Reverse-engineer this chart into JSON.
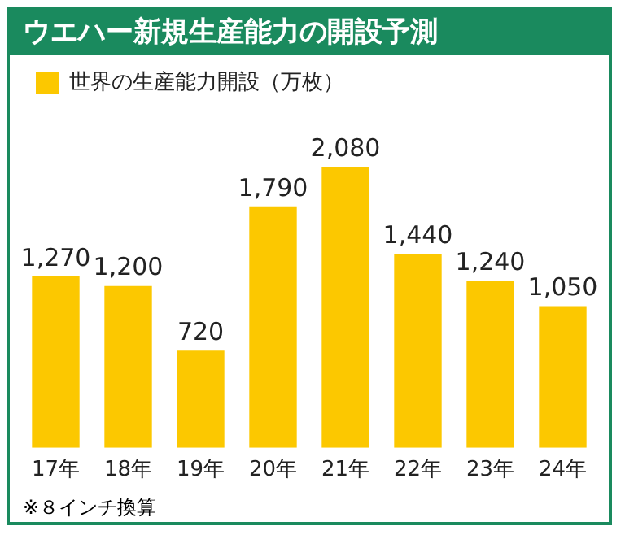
{
  "chart_data": {
    "type": "bar",
    "title": "ウエハー新規生産能力の開設予測",
    "categories": [
      "17年",
      "18年",
      "19年",
      "20年",
      "21年",
      "22年",
      "23年",
      "24年"
    ],
    "series": [
      {
        "name": "世界の生産能力開設（万枚）",
        "color": "#fcc800",
        "values": [
          1270,
          1200,
          720,
          1790,
          2080,
          1440,
          1240,
          1050
        ],
        "value_labels": [
          "1,270",
          "1,200",
          "720",
          "1,790",
          "2,080",
          "1,440",
          "1,240",
          "1,050"
        ]
      }
    ],
    "legend": "top left",
    "grid": false,
    "annotations": [
      "※８インチ換算"
    ]
  }
}
